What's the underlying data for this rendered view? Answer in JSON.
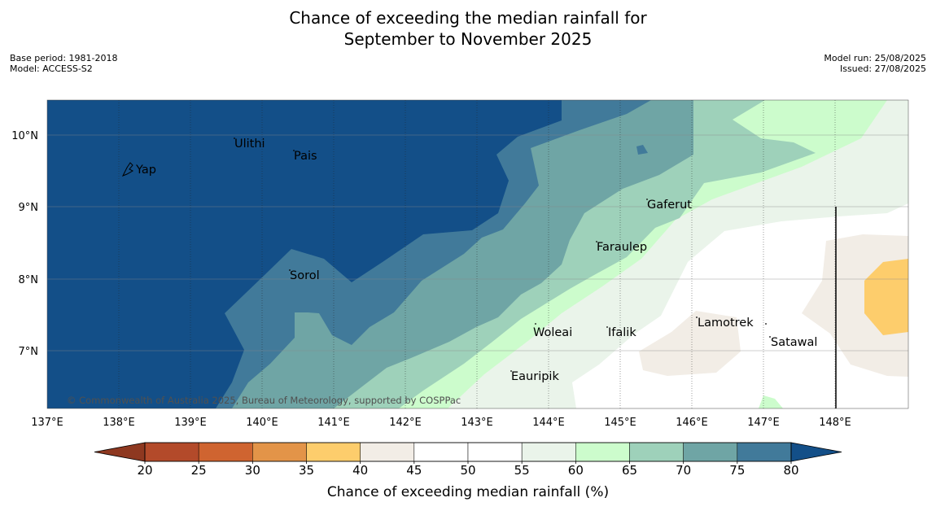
{
  "title": {
    "line1": "Chance of exceeding the median rainfall for",
    "line2": "September to November 2025"
  },
  "meta_left": {
    "base_period": "Base period: 1981-2018",
    "model": "Model: ACCESS-S2"
  },
  "meta_right": {
    "model_run": "Model run: 25/08/2025",
    "issued": "Issued: 27/08/2025"
  },
  "map": {
    "x_ticks": [
      "137°E",
      "138°E",
      "139°E",
      "140°E",
      "141°E",
      "142°E",
      "143°E",
      "144°E",
      "145°E",
      "146°E",
      "147°E",
      "148°E"
    ],
    "y_ticks": [
      "10°N",
      "9°N",
      "8°N",
      "7°N"
    ],
    "places": {
      "ulithi": "Ulithi",
      "pais": "Pais",
      "yap": "Yap",
      "gaferut": "Gaferut",
      "faraulep": "Faraulep",
      "sorol": "Sorol",
      "woleai": "Woleai",
      "ifalik": "Ifalik",
      "lamotrek": "Lamotrek",
      "satawal": "Satawal",
      "eauripik": "Eauripik"
    },
    "copyright": "© Commonwealth of Australia 2025, Bureau of Meteorology, supported by COSPPac"
  },
  "colorbar": {
    "ticks": [
      "20",
      "25",
      "30",
      "35",
      "40",
      "45",
      "50",
      "55",
      "60",
      "65",
      "70",
      "75",
      "80"
    ],
    "colors": [
      "#b34a2a",
      "#cf6430",
      "#e39448",
      "#fdcd6c",
      "#f2ede6",
      "#ffffff",
      "#ffffff",
      "#eaf4ea",
      "#ccfccc",
      "#9ed1ba",
      "#6fa5a5",
      "#417a9a"
    ],
    "under_color": "#8e3820",
    "over_color": "#134f88",
    "label": "Chance of exceeding median rainfall (%)"
  }
}
